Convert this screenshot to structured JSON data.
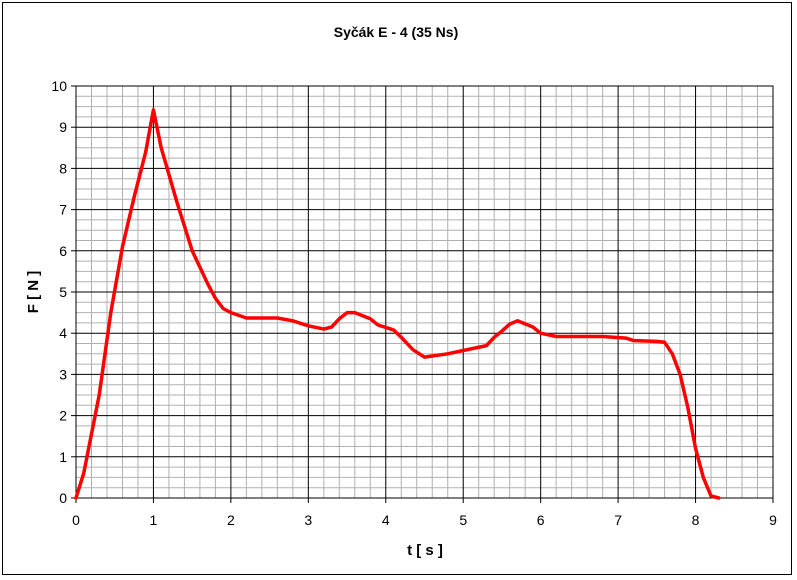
{
  "chart_data": {
    "type": "line",
    "title": "Syčák  E - 4   (35 Ns)",
    "xlabel": "t  [ s ]",
    "ylabel": "F  [ N ]",
    "xlim": [
      0,
      9
    ],
    "ylim": [
      0,
      10
    ],
    "xticks": [
      "0",
      "1",
      "2",
      "3",
      "4",
      "5",
      "6",
      "7",
      "8",
      "9"
    ],
    "yticks": [
      "0",
      "1",
      "2",
      "3",
      "4",
      "5",
      "6",
      "7",
      "8",
      "9",
      "10"
    ],
    "grid": true,
    "minor_grid": true,
    "legend": "none",
    "colors": {
      "line": "#ff0000",
      "major_grid": "#000000",
      "minor_grid": "#b0b0b0"
    },
    "series": [
      {
        "values": [
          [
            0,
            0
          ],
          [
            0.1,
            0.6
          ],
          [
            0.3,
            2.5
          ],
          [
            0.45,
            4.5
          ],
          [
            0.6,
            6.1
          ],
          [
            0.75,
            7.3
          ],
          [
            0.9,
            8.4
          ],
          [
            1.0,
            9.42
          ],
          [
            1.1,
            8.5
          ],
          [
            1.3,
            7.2
          ],
          [
            1.5,
            6.0
          ],
          [
            1.7,
            5.2
          ],
          [
            1.8,
            4.85
          ],
          [
            1.9,
            4.6
          ],
          [
            2.0,
            4.5
          ],
          [
            2.2,
            4.37
          ],
          [
            2.6,
            4.37
          ],
          [
            2.8,
            4.3
          ],
          [
            3.0,
            4.18
          ],
          [
            3.2,
            4.1
          ],
          [
            3.3,
            4.15
          ],
          [
            3.4,
            4.35
          ],
          [
            3.5,
            4.5
          ],
          [
            3.6,
            4.5
          ],
          [
            3.8,
            4.35
          ],
          [
            3.9,
            4.2
          ],
          [
            4.1,
            4.08
          ],
          [
            4.2,
            3.9
          ],
          [
            4.35,
            3.6
          ],
          [
            4.5,
            3.42
          ],
          [
            4.8,
            3.5
          ],
          [
            5.0,
            3.58
          ],
          [
            5.3,
            3.7
          ],
          [
            5.4,
            3.9
          ],
          [
            5.5,
            4.05
          ],
          [
            5.6,
            4.22
          ],
          [
            5.7,
            4.3
          ],
          [
            5.9,
            4.15
          ],
          [
            6.0,
            4.0
          ],
          [
            6.2,
            3.92
          ],
          [
            6.8,
            3.92
          ],
          [
            7.1,
            3.88
          ],
          [
            7.2,
            3.82
          ],
          [
            7.5,
            3.8
          ],
          [
            7.6,
            3.78
          ],
          [
            7.7,
            3.5
          ],
          [
            7.8,
            3.0
          ],
          [
            7.9,
            2.2
          ],
          [
            8.0,
            1.2
          ],
          [
            8.1,
            0.5
          ],
          [
            8.2,
            0.05
          ],
          [
            8.3,
            0
          ]
        ]
      }
    ]
  }
}
